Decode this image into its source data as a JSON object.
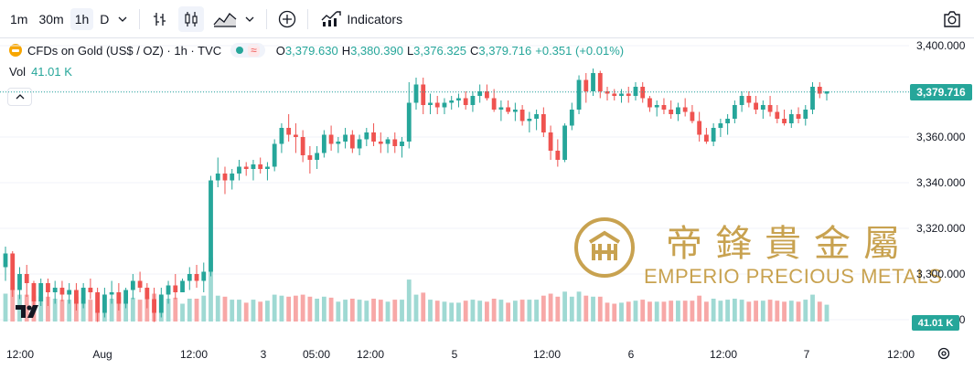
{
  "toolbar": {
    "timeframes": [
      "1m",
      "30m",
      "1h",
      "D"
    ],
    "active_timeframe": "1h",
    "indicators_label": "Indicators",
    "icons": [
      "chevron-down-icon",
      "bar-style-icon",
      "candles-icon",
      "area-icon",
      "plus-circle-icon",
      "indicators-icon",
      "camera-icon"
    ]
  },
  "legend": {
    "title": "CFDs on Gold (US$ / OZ) · 1h · TVC",
    "open_label": "O",
    "open": "3,379.630",
    "high_label": "H",
    "high": "3,380.390",
    "low_label": "L",
    "low": "3,376.325",
    "close_label": "C",
    "close": "3,379.716",
    "change": "+0.351 (+0.01%)",
    "wave_icon": "≈"
  },
  "volume": {
    "label": "Vol",
    "value": "41.01 K"
  },
  "price_axis": {
    "ticks": [
      "3,400.000",
      "3,380.000",
      "3,360.000",
      "3,340.000",
      "3,320.000",
      "3,300.000",
      "3,280.000"
    ],
    "current_price": "3,379.716",
    "volume_tag": "41.01 K"
  },
  "time_axis": {
    "ticks": [
      "12:00",
      "Aug",
      "12:00",
      "3",
      "05:00",
      "12:00",
      "5",
      "12:00",
      "6",
      "12:00",
      "7",
      "12:00"
    ]
  },
  "watermark": {
    "chinese": "帝鋒貴金屬",
    "english": "EMPERIO PRECIOUS METALS"
  },
  "colors": {
    "up": "#26a69a",
    "down": "#ef5350",
    "vol_up": "#9fd9d3",
    "vol_down": "#f7a8a7",
    "gold": "#c8a250"
  },
  "chart_data": {
    "type": "candlestick",
    "timeframe": "1h",
    "ylim": [
      3270,
      3410
    ],
    "grid": true,
    "candles": [
      [
        3303,
        3312,
        3297,
        3309
      ],
      [
        3309,
        3310,
        3290,
        3293
      ],
      [
        3293,
        3303,
        3289,
        3300
      ],
      [
        3300,
        3304,
        3290,
        3296
      ],
      [
        3296,
        3297,
        3284,
        3288
      ],
      [
        3288,
        3298,
        3286,
        3296
      ],
      [
        3296,
        3298,
        3286,
        3292
      ],
      [
        3292,
        3297,
        3287,
        3294
      ],
      [
        3294,
        3297,
        3288,
        3291
      ],
      [
        3291,
        3296,
        3287,
        3293
      ],
      [
        3293,
        3296,
        3284,
        3287
      ],
      [
        3287,
        3296,
        3285,
        3294
      ],
      [
        3294,
        3298,
        3289,
        3292
      ],
      [
        3292,
        3294,
        3279,
        3283
      ],
      [
        3283,
        3294,
        3281,
        3291
      ],
      [
        3291,
        3297,
        3287,
        3292
      ],
      [
        3292,
        3296,
        3284,
        3287
      ],
      [
        3287,
        3294,
        3285,
        3293
      ],
      [
        3293,
        3300,
        3289,
        3297
      ],
      [
        3297,
        3301,
        3292,
        3294
      ],
      [
        3294,
        3296,
        3285,
        3289
      ],
      [
        3289,
        3294,
        3279,
        3283
      ],
      [
        3283,
        3294,
        3281,
        3291
      ],
      [
        3291,
        3297,
        3287,
        3295
      ],
      [
        3295,
        3300,
        3289,
        3292
      ],
      [
        3292,
        3298,
        3293,
        3297
      ],
      [
        3297,
        3303,
        3293,
        3300
      ],
      [
        3300,
        3304,
        3294,
        3297
      ],
      [
        3297,
        3305,
        3292,
        3301
      ],
      [
        3301,
        3343,
        3299,
        3341
      ],
      [
        3341,
        3351,
        3338,
        3344
      ],
      [
        3344,
        3347,
        3335,
        3341
      ],
      [
        3341,
        3346,
        3337,
        3344
      ],
      [
        3344,
        3350,
        3341,
        3347
      ],
      [
        3347,
        3349,
        3343,
        3346
      ],
      [
        3346,
        3350,
        3341,
        3348
      ],
      [
        3348,
        3351,
        3344,
        3346
      ],
      [
        3346,
        3349,
        3341,
        3347
      ],
      [
        3347,
        3359,
        3345,
        3357
      ],
      [
        3357,
        3366,
        3353,
        3364
      ],
      [
        3364,
        3370,
        3358,
        3361
      ],
      [
        3361,
        3366,
        3353,
        3360
      ],
      [
        3360,
        3363,
        3349,
        3352
      ],
      [
        3352,
        3356,
        3344,
        3350
      ],
      [
        3350,
        3356,
        3346,
        3353
      ],
      [
        3353,
        3363,
        3351,
        3361
      ],
      [
        3361,
        3365,
        3354,
        3357
      ],
      [
        3357,
        3360,
        3353,
        3358
      ],
      [
        3358,
        3364,
        3355,
        3361
      ],
      [
        3361,
        3363,
        3353,
        3355
      ],
      [
        3355,
        3361,
        3352,
        3359
      ],
      [
        3359,
        3364,
        3356,
        3362
      ],
      [
        3362,
        3366,
        3356,
        3358
      ],
      [
        3358,
        3362,
        3353,
        3357
      ],
      [
        3357,
        3360,
        3353,
        3359
      ],
      [
        3359,
        3362,
        3353,
        3356
      ],
      [
        3356,
        3360,
        3351,
        3358
      ],
      [
        3358,
        3384,
        3355,
        3375
      ],
      [
        3375,
        3386,
        3372,
        3383
      ],
      [
        3383,
        3386,
        3370,
        3374
      ],
      [
        3374,
        3379,
        3370,
        3375
      ],
      [
        3375,
        3378,
        3370,
        3373
      ],
      [
        3373,
        3377,
        3370,
        3375
      ],
      [
        3375,
        3378,
        3372,
        3376
      ],
      [
        3376,
        3379,
        3373,
        3377
      ],
      [
        3377,
        3380,
        3372,
        3374
      ],
      [
        3374,
        3380,
        3371,
        3378
      ],
      [
        3378,
        3383,
        3375,
        3380
      ],
      [
        3380,
        3383,
        3376,
        3377
      ],
      [
        3377,
        3381,
        3371,
        3372
      ],
      [
        3372,
        3376,
        3367,
        3373
      ],
      [
        3373,
        3376,
        3370,
        3371
      ],
      [
        3371,
        3375,
        3367,
        3372
      ],
      [
        3372,
        3374,
        3365,
        3367
      ],
      [
        3367,
        3371,
        3362,
        3368
      ],
      [
        3368,
        3372,
        3363,
        3370
      ],
      [
        3370,
        3373,
        3360,
        3362
      ],
      [
        3362,
        3365,
        3350,
        3354
      ],
      [
        3354,
        3359,
        3347,
        3350
      ],
      [
        3350,
        3366,
        3349,
        3365
      ],
      [
        3365,
        3375,
        3363,
        3372
      ],
      [
        3372,
        3387,
        3370,
        3385
      ],
      [
        3385,
        3388,
        3375,
        3380
      ],
      [
        3380,
        3390,
        3378,
        3388
      ],
      [
        3388,
        3389,
        3377,
        3380
      ],
      [
        3380,
        3382,
        3376,
        3379
      ],
      [
        3379,
        3381,
        3376,
        3378
      ],
      [
        3378,
        3381,
        3375,
        3379
      ],
      [
        3379,
        3382,
        3375,
        3378
      ],
      [
        3378,
        3384,
        3376,
        3382
      ],
      [
        3382,
        3384,
        3375,
        3377
      ],
      [
        3377,
        3378,
        3371,
        3373
      ],
      [
        3373,
        3376,
        3369,
        3374
      ],
      [
        3374,
        3377,
        3370,
        3372
      ],
      [
        3372,
        3376,
        3368,
        3370
      ],
      [
        3370,
        3375,
        3367,
        3373
      ],
      [
        3373,
        3377,
        3369,
        3371
      ],
      [
        3371,
        3374,
        3366,
        3367
      ],
      [
        3367,
        3371,
        3358,
        3361
      ],
      [
        3361,
        3364,
        3357,
        3358
      ],
      [
        3358,
        3366,
        3356,
        3364
      ],
      [
        3364,
        3368,
        3360,
        3366
      ],
      [
        3366,
        3370,
        3361,
        3368
      ],
      [
        3368,
        3376,
        3366,
        3374
      ],
      [
        3374,
        3380,
        3371,
        3378
      ],
      [
        3378,
        3380,
        3373,
        3375
      ],
      [
        3375,
        3378,
        3370,
        3372
      ],
      [
        3372,
        3376,
        3368,
        3374
      ],
      [
        3374,
        3378,
        3369,
        3371
      ],
      [
        3371,
        3374,
        3366,
        3368
      ],
      [
        3368,
        3372,
        3365,
        3366
      ],
      [
        3366,
        3372,
        3364,
        3370
      ],
      [
        3370,
        3373,
        3366,
        3368
      ],
      [
        3368,
        3374,
        3365,
        3372
      ],
      [
        3372,
        3384,
        3370,
        3382
      ],
      [
        3382,
        3384,
        3377,
        3379
      ],
      [
        3379,
        3380,
        3376,
        3380
      ]
    ],
    "volume_up_down": "derived from candle direction",
    "current_price": 3379.716
  }
}
